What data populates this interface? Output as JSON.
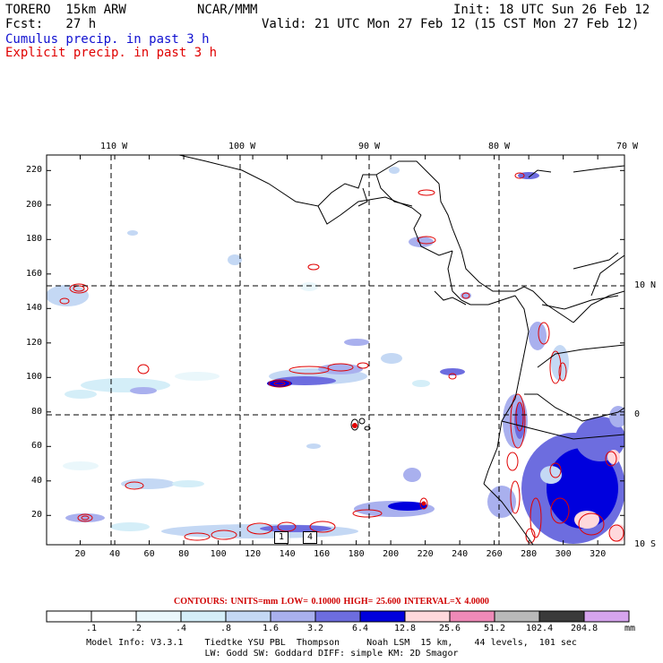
{
  "header": {
    "model": "TORERO  15km ARW",
    "org": "NCAR/MMM",
    "init": "Init: 18 UTC Sun 26 Feb 12",
    "fcst": "Fcst:   27 h",
    "valid": "Valid: 21 UTC Mon 27 Feb 12 (15 CST Mon 27 Feb 12)",
    "cumulus": "Cumulus precip. in past 3 h",
    "explicit": "Explicit precip. in past 3 h"
  },
  "colors": {
    "cumulus_text": "#1010d0",
    "explicit_text": "#e00000",
    "contour": "#e00000"
  },
  "axes": {
    "lon_labels": [
      "110 W",
      "100 W",
      "90 W",
      "80 W",
      "70 W"
    ],
    "lat_labels": [
      "10 N",
      "0",
      "10 S"
    ],
    "x_ticks": [
      "20",
      "40",
      "60",
      "80",
      "100",
      "120",
      "140",
      "160",
      "180",
      "200",
      "220",
      "240",
      "260",
      "280",
      "300",
      "320"
    ],
    "y_ticks": [
      "220",
      "200",
      "180",
      "160",
      "140",
      "120",
      "100",
      "80",
      "60",
      "40",
      "20"
    ]
  },
  "contours_info": "CONTOURS:  UNITS=mm  LOW= 0.10000      HIGH=  25.600      INTERVAL=X  4.0000",
  "colorbar": {
    "unit": "mm",
    "labels": [
      ".1",
      ".2",
      ".4",
      ".8",
      "1.6",
      "3.2",
      "6.4",
      "12.8",
      "25.6",
      "51.2",
      "102.4",
      "204.8"
    ],
    "colors": [
      "#ffffff",
      "#ffffff",
      "#eaf7fb",
      "#d4eef8",
      "#c4d8f4",
      "#a9b0ee",
      "#6d6ddf",
      "#0000dd",
      "#ffd8dc",
      "#ef8ab8",
      "#b9b9b9",
      "#3a3a3a",
      "#d6a4ee"
    ]
  },
  "box_labels": [
    "1",
    "4"
  ],
  "footer": {
    "line1": "Model Info: V3.3.1    Tiedtke YSU PBL  Thompson     Noah LSM  15 km,    44 levels,  101 sec",
    "line2": "LW: Godd SW: Goddard DIFF: simple KM: 2D Smagor"
  }
}
